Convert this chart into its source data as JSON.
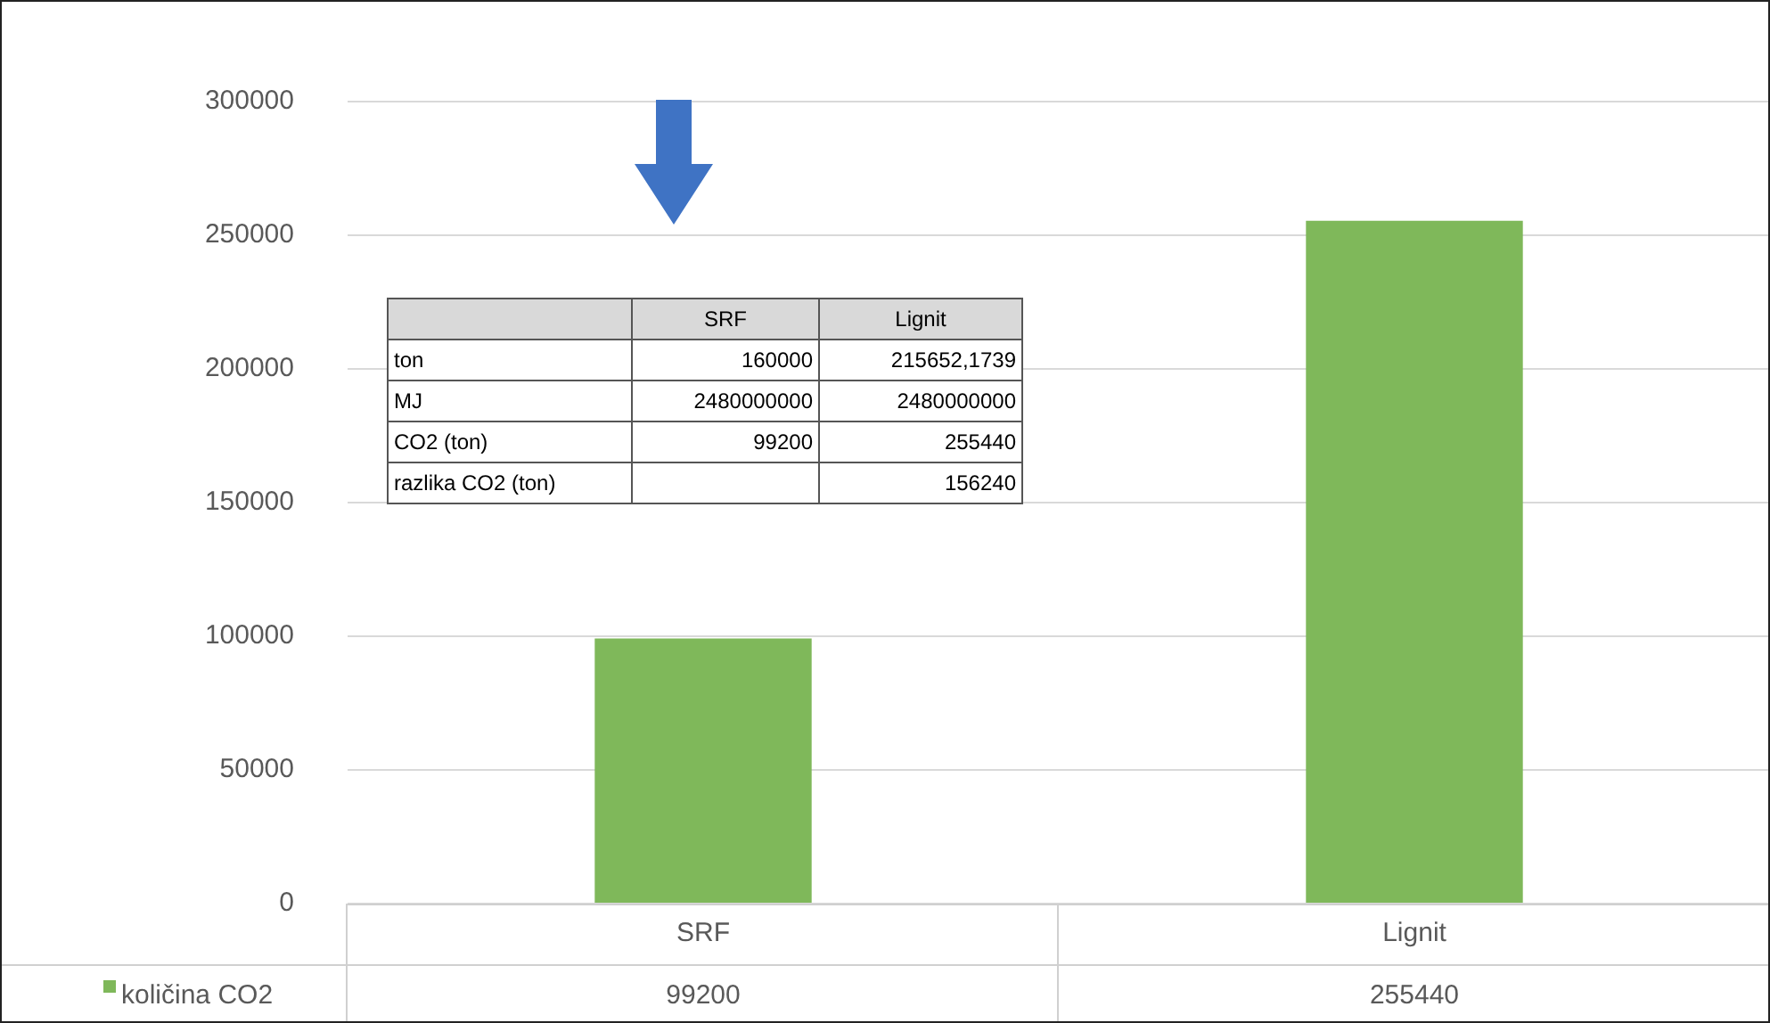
{
  "chart_data": {
    "type": "bar",
    "categories": [
      "SRF",
      "Lignit"
    ],
    "series": [
      {
        "name": "količina CO2",
        "color": "#7fb85a",
        "values": [
          99200,
          255440
        ]
      }
    ],
    "ylim": [
      0,
      300000
    ],
    "yticks": [
      0,
      50000,
      100000,
      150000,
      200000,
      250000,
      300000
    ],
    "grid": "y",
    "legend": "bottom",
    "data_labels": true,
    "annotations": [
      "SRF",
      "Lignit",
      "ton",
      "160000",
      "215652,1739",
      "MJ",
      "2480000000",
      "2480000000",
      "CO2 (ton)",
      "99200",
      "255440",
      "razlika CO2 (ton)",
      "156240"
    ]
  }
}
